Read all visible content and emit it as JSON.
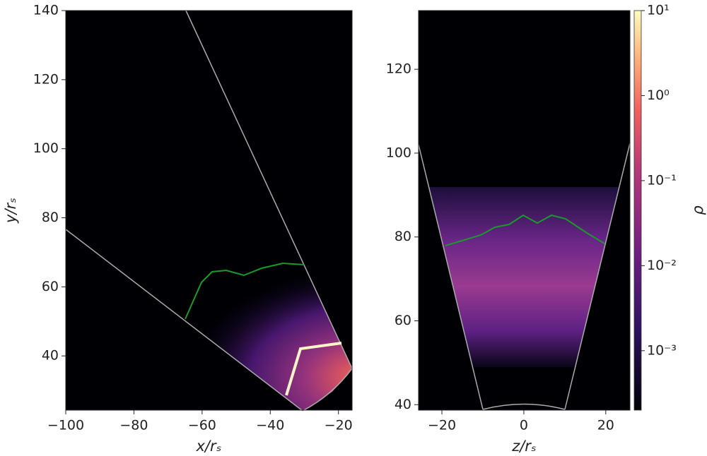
{
  "chart_data": [
    {
      "type": "heatmap",
      "xlabel": "x/rₛ",
      "ylabel": "y/rₛ",
      "xlim": [
        -100,
        -16
      ],
      "ylim": [
        24.3,
        140
      ],
      "xticks": [
        {
          "value": -100,
          "label": "−100"
        },
        {
          "value": -80,
          "label": "−80"
        },
        {
          "value": -60,
          "label": "−60"
        },
        {
          "value": -40,
          "label": "−40"
        },
        {
          "value": -20,
          "label": "−20"
        }
      ],
      "yticks": [
        40,
        60,
        80,
        100,
        120,
        140
      ]
    },
    {
      "type": "heatmap",
      "xlabel": "z/rₛ",
      "ylabel": null,
      "xlim": [
        -25.7,
        25.9
      ],
      "ylim": [
        38.7,
        134
      ],
      "xticks": [
        {
          "value": -20,
          "label": "−20"
        },
        0,
        20
      ],
      "yticks": [
        40,
        60,
        80,
        100,
        120
      ],
      "colorbar": {
        "label": "ρ",
        "log": true,
        "clim": [
          0.0002,
          10
        ],
        "ticks": [
          {
            "value": 10,
            "label": "10¹"
          },
          {
            "value": 1,
            "label": "10⁰"
          },
          {
            "value": 0.1,
            "label": "10⁻¹"
          },
          {
            "value": 0.01,
            "label": "10⁻²"
          },
          {
            "value": 0.001,
            "label": "10⁻³"
          }
        ]
      }
    }
  ]
}
